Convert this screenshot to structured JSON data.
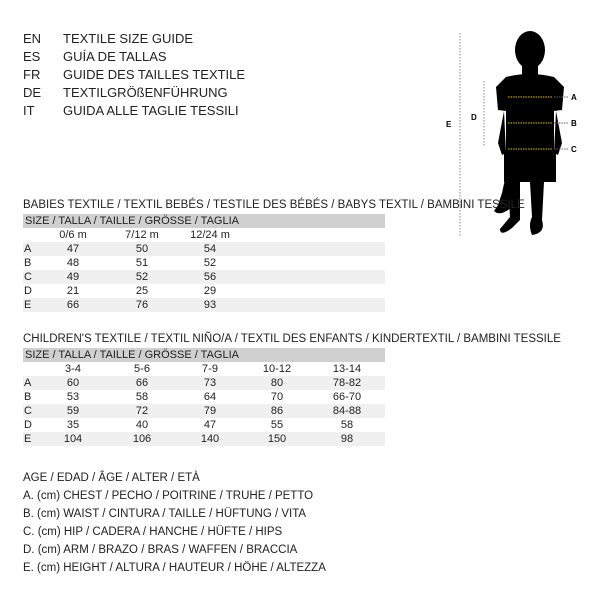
{
  "languages": [
    {
      "code": "EN",
      "text": "TEXTILE SIZE GUIDE"
    },
    {
      "code": "ES",
      "text": "GUÍA DE TALLAS"
    },
    {
      "code": "FR",
      "text": "GUIDE DES TAILLES TEXTILE"
    },
    {
      "code": "DE",
      "text": "TEXTILGRÖßENFÜHRUNG"
    },
    {
      "code": "IT",
      "text": "GUIDA ALLE TAGLIE TESSILI"
    }
  ],
  "figure": {
    "labels": {
      "a": "A",
      "b": "B",
      "c": "C",
      "d": "D",
      "e": "E"
    },
    "measure_line_color": "#e8c21c"
  },
  "babies": {
    "title": "BABIES TEXTILE / TEXTIL BEBÉS / TESTILE DES BÉBÉS / BABYS TEXTIL / BAMBINI TESSILE",
    "size_header": "SIZE / TALLA / TAILLE / GRÖSSE / TAGLIA",
    "columns": [
      "0/6 m",
      "7/12 m",
      "12/24 m"
    ],
    "rows": [
      {
        "label": "A",
        "values": [
          "47",
          "50",
          "54"
        ]
      },
      {
        "label": "B",
        "values": [
          "48",
          "51",
          "52"
        ]
      },
      {
        "label": "C",
        "values": [
          "49",
          "52",
          "56"
        ]
      },
      {
        "label": "D",
        "values": [
          "21",
          "25",
          "29"
        ]
      },
      {
        "label": "E",
        "values": [
          "66",
          "76",
          "93"
        ]
      }
    ]
  },
  "children": {
    "title": "CHILDREN'S TEXTILE / TEXTIL NIÑO/A / TEXTIL DES ENFANTS / KINDERTEXTIL / BAMBINI TESSILE",
    "size_header": "SIZE / TALLA / TAILLE / GRÖSSE / TAGLIA",
    "columns": [
      "3-4",
      "5-6",
      "7-9",
      "10-12",
      "13-14"
    ],
    "rows": [
      {
        "label": "A",
        "values": [
          "60",
          "66",
          "73",
          "80",
          "78-82"
        ]
      },
      {
        "label": "B",
        "values": [
          "53",
          "58",
          "64",
          "70",
          "66-70"
        ]
      },
      {
        "label": "C",
        "values": [
          "59",
          "72",
          "79",
          "86",
          "84-88"
        ]
      },
      {
        "label": "D",
        "values": [
          "35",
          "40",
          "47",
          "55",
          "58"
        ]
      },
      {
        "label": "E",
        "values": [
          "104",
          "106",
          "140",
          "150",
          "98"
        ]
      }
    ]
  },
  "legend": [
    "AGE / EDAD / ÂGE / ALTER / ETÀ",
    "A. (cm) CHEST / PECHO / POITRINE / TRUHE / PETTO",
    "B. (cm) WAIST / CINTURA / TAILLE / HÜFTUNG / VITA",
    "C. (cm) HIP / CADERA / HANCHE / HÜFTE / HIPS",
    "D. (cm) ARM / BRAZO / BRAS / WAFFEN / BRACCIA",
    "E. (cm) HEIGHT / ALTURA / HAUTEUR / HÖHE / ALTEZZA"
  ]
}
